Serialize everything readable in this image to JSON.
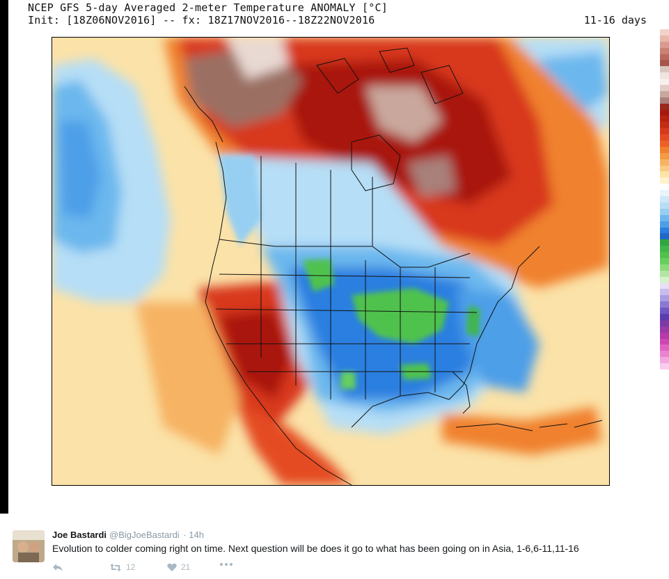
{
  "header": {
    "title_line1": "NCEP GFS 5-day Averaged 2-meter Temperature ANOMALY [°C]",
    "title_line2": "Init: [18Z06NOV2016] -- fx: 18Z17NOV2016--18Z22NOV2016",
    "forecast_range": "11-16 days"
  },
  "map": {
    "region": "North America",
    "palette": {
      "deep_brown": "#9b6f63",
      "pale_brown": "#e9d9d3",
      "dark_red": "#a9180d",
      "red": "#d8391c",
      "orange": "#f0812e",
      "light_orange": "#f6b363",
      "yellow": "#fce3a6",
      "white": "#ffffff",
      "pale_blue": "#b6def6",
      "light_blue": "#6cb8ee",
      "blue": "#2a7fe0",
      "green": "#4fc24d"
    }
  },
  "colorbar": {
    "colors": [
      "#f3d3c8",
      "#e8b8ab",
      "#d89b8e",
      "#c98272",
      "#b8695a",
      "#a6564a",
      "#d9c7bf",
      "#efe4df",
      "#f7f0ed",
      "#e2cdc6",
      "#c9a79c",
      "#a9807a",
      "#9a2a1c",
      "#a9180d",
      "#b7220f",
      "#c62c14",
      "#d8391c",
      "#e44b21",
      "#ee6126",
      "#f0812e",
      "#f39a42",
      "#f6b363",
      "#f9cb84",
      "#fce3a6",
      "#fff3cf",
      "#ffffff",
      "#e8f4fc",
      "#cde8f8",
      "#b6def6",
      "#96cff2",
      "#6cb8ee",
      "#4d9fe8",
      "#2a7fe0",
      "#1f68c8",
      "#2fa642",
      "#3fb64a",
      "#4fc24d",
      "#67cf5e",
      "#8adb7a",
      "#b0e7a3",
      "#d5f2cc",
      "#e6e0f7",
      "#c9bdef",
      "#a99ee3",
      "#8a7ad4",
      "#6f58c4",
      "#5b3cb0",
      "#7a3aa8",
      "#9a3aa6",
      "#b73aa8",
      "#cf45b2",
      "#df62c2",
      "#ea84d2",
      "#f2a8e1",
      "#f8ccee",
      "#ffffff",
      "#ffffff",
      "#ffffff",
      "#ffffff",
      "#ffffff",
      "#ffffff",
      "#ffffff",
      "#ffffff"
    ]
  },
  "tweet": {
    "author_name": "Joe Bastardi",
    "author_handle": "@BigJoeBastardi",
    "time": "· 14h",
    "text": "Evolution to colder coming right on time. Next question will be does it go to what has been going on in Asia, 1-6,6-11,11-16",
    "retweets": "12",
    "likes": "21"
  }
}
